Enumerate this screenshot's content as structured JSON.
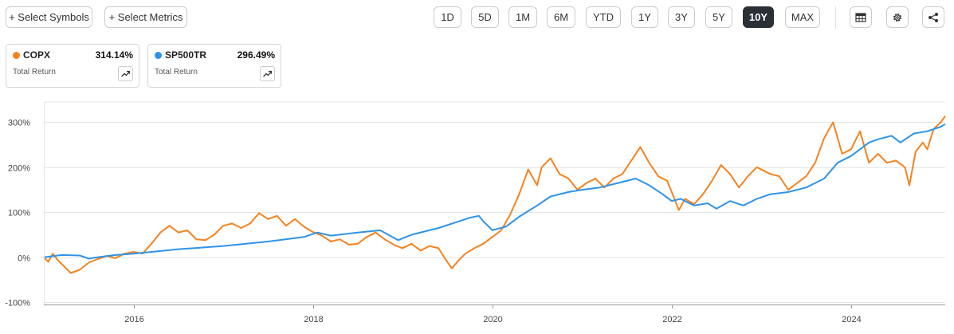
{
  "toolbar": {
    "select_symbols": "+ Select Symbols",
    "select_metrics": "+ Select Metrics",
    "ranges": [
      "1D",
      "5D",
      "1M",
      "6M",
      "YTD",
      "1Y",
      "3Y",
      "5Y",
      "10Y",
      "MAX"
    ],
    "active_range": "10Y",
    "icons": [
      "table-icon",
      "gear-icon",
      "share-icon"
    ]
  },
  "legend": [
    {
      "symbol": "COPX",
      "value": "314.14%",
      "subtitle": "Total Return",
      "color": "#f5821f"
    },
    {
      "symbol": "SP500TR",
      "value": "296.49%",
      "subtitle": "Total Return",
      "color": "#2e93e8"
    }
  ],
  "chart_data": {
    "type": "line",
    "xlabel": "",
    "ylabel": "",
    "x_tick_labels": [
      "2016",
      "2018",
      "2020",
      "2022",
      "2024"
    ],
    "y_tick_labels": [
      "300%",
      "200%",
      "100%",
      "0%",
      "-100%"
    ],
    "xlim": [
      2015.0,
      2025.05
    ],
    "ylim": [
      -105,
      345
    ],
    "grid": "horizontal",
    "series": [
      {
        "name": "COPX",
        "color": "#f5821f",
        "points": [
          [
            2015.0,
            0
          ],
          [
            2015.05,
            -10
          ],
          [
            2015.1,
            8
          ],
          [
            2015.15,
            -5
          ],
          [
            2015.2,
            -15
          ],
          [
            2015.3,
            -35
          ],
          [
            2015.4,
            -28
          ],
          [
            2015.5,
            -12
          ],
          [
            2015.6,
            -4
          ],
          [
            2015.7,
            3
          ],
          [
            2015.8,
            -2
          ],
          [
            2015.9,
            8
          ],
          [
            2016.0,
            12
          ],
          [
            2016.1,
            8
          ],
          [
            2016.2,
            30
          ],
          [
            2016.3,
            55
          ],
          [
            2016.4,
            70
          ],
          [
            2016.5,
            55
          ],
          [
            2016.6,
            60
          ],
          [
            2016.7,
            40
          ],
          [
            2016.8,
            38
          ],
          [
            2016.9,
            50
          ],
          [
            2017.0,
            70
          ],
          [
            2017.1,
            75
          ],
          [
            2017.2,
            65
          ],
          [
            2017.3,
            75
          ],
          [
            2017.4,
            98
          ],
          [
            2017.5,
            85
          ],
          [
            2017.6,
            92
          ],
          [
            2017.7,
            70
          ],
          [
            2017.8,
            85
          ],
          [
            2017.9,
            68
          ],
          [
            2018.0,
            56
          ],
          [
            2018.1,
            48
          ],
          [
            2018.2,
            35
          ],
          [
            2018.3,
            40
          ],
          [
            2018.4,
            28
          ],
          [
            2018.5,
            30
          ],
          [
            2018.6,
            45
          ],
          [
            2018.7,
            55
          ],
          [
            2018.8,
            40
          ],
          [
            2018.9,
            28
          ],
          [
            2019.0,
            20
          ],
          [
            2019.1,
            30
          ],
          [
            2019.2,
            15
          ],
          [
            2019.3,
            25
          ],
          [
            2019.4,
            20
          ],
          [
            2019.48,
            -5
          ],
          [
            2019.55,
            -25
          ],
          [
            2019.62,
            -8
          ],
          [
            2019.7,
            8
          ],
          [
            2019.8,
            20
          ],
          [
            2019.9,
            30
          ],
          [
            2020.0,
            45
          ],
          [
            2020.1,
            60
          ],
          [
            2020.2,
            95
          ],
          [
            2020.3,
            140
          ],
          [
            2020.4,
            195
          ],
          [
            2020.5,
            160
          ],
          [
            2020.55,
            200
          ],
          [
            2020.65,
            220
          ],
          [
            2020.75,
            185
          ],
          [
            2020.85,
            175
          ],
          [
            2020.95,
            150
          ],
          [
            2021.05,
            165
          ],
          [
            2021.15,
            175
          ],
          [
            2021.25,
            155
          ],
          [
            2021.35,
            175
          ],
          [
            2021.45,
            185
          ],
          [
            2021.55,
            215
          ],
          [
            2021.65,
            245
          ],
          [
            2021.75,
            210
          ],
          [
            2021.85,
            180
          ],
          [
            2021.95,
            170
          ],
          [
            2022.0,
            145
          ],
          [
            2022.08,
            105
          ],
          [
            2022.15,
            130
          ],
          [
            2022.25,
            118
          ],
          [
            2022.35,
            140
          ],
          [
            2022.45,
            170
          ],
          [
            2022.55,
            205
          ],
          [
            2022.65,
            185
          ],
          [
            2022.75,
            155
          ],
          [
            2022.85,
            180
          ],
          [
            2022.95,
            200
          ],
          [
            2023.1,
            185
          ],
          [
            2023.2,
            180
          ],
          [
            2023.3,
            150
          ],
          [
            2023.4,
            165
          ],
          [
            2023.5,
            180
          ],
          [
            2023.6,
            210
          ],
          [
            2023.7,
            265
          ],
          [
            2023.8,
            300
          ],
          [
            2023.9,
            230
          ],
          [
            2024.0,
            240
          ],
          [
            2024.1,
            280
          ],
          [
            2024.2,
            210
          ],
          [
            2024.3,
            230
          ],
          [
            2024.4,
            210
          ],
          [
            2024.5,
            215
          ],
          [
            2024.6,
            200
          ],
          [
            2024.65,
            160
          ],
          [
            2024.72,
            235
          ],
          [
            2024.8,
            255
          ],
          [
            2024.85,
            240
          ],
          [
            2024.92,
            285
          ],
          [
            2025.0,
            300
          ],
          [
            2025.05,
            314
          ]
        ]
      },
      {
        "name": "SP500TR",
        "color": "#2e93e8",
        "points": [
          [
            2015.0,
            0
          ],
          [
            2015.2,
            5
          ],
          [
            2015.4,
            4
          ],
          [
            2015.5,
            -3
          ],
          [
            2015.6,
            0
          ],
          [
            2015.8,
            5
          ],
          [
            2016.0,
            8
          ],
          [
            2016.2,
            12
          ],
          [
            2016.5,
            18
          ],
          [
            2016.8,
            22
          ],
          [
            2017.0,
            25
          ],
          [
            2017.5,
            35
          ],
          [
            2017.9,
            45
          ],
          [
            2018.05,
            55
          ],
          [
            2018.2,
            48
          ],
          [
            2018.5,
            55
          ],
          [
            2018.75,
            60
          ],
          [
            2018.95,
            38
          ],
          [
            2019.1,
            50
          ],
          [
            2019.4,
            65
          ],
          [
            2019.6,
            78
          ],
          [
            2019.75,
            88
          ],
          [
            2019.85,
            92
          ],
          [
            2019.9,
            80
          ],
          [
            2019.95,
            70
          ],
          [
            2020.0,
            60
          ],
          [
            2020.15,
            68
          ],
          [
            2020.3,
            90
          ],
          [
            2020.5,
            115
          ],
          [
            2020.65,
            135
          ],
          [
            2020.85,
            145
          ],
          [
            2021.0,
            150
          ],
          [
            2021.2,
            155
          ],
          [
            2021.4,
            165
          ],
          [
            2021.6,
            175
          ],
          [
            2021.75,
            160
          ],
          [
            2021.9,
            140
          ],
          [
            2022.0,
            125
          ],
          [
            2022.1,
            130
          ],
          [
            2022.25,
            115
          ],
          [
            2022.4,
            120
          ],
          [
            2022.5,
            108
          ],
          [
            2022.65,
            125
          ],
          [
            2022.8,
            115
          ],
          [
            2022.95,
            130
          ],
          [
            2023.1,
            140
          ],
          [
            2023.3,
            145
          ],
          [
            2023.5,
            155
          ],
          [
            2023.7,
            175
          ],
          [
            2023.85,
            210
          ],
          [
            2024.0,
            225
          ],
          [
            2024.1,
            240
          ],
          [
            2024.2,
            255
          ],
          [
            2024.3,
            262
          ],
          [
            2024.45,
            270
          ],
          [
            2024.55,
            255
          ],
          [
            2024.7,
            275
          ],
          [
            2024.85,
            280
          ],
          [
            2025.0,
            290
          ],
          [
            2025.05,
            296
          ]
        ]
      }
    ]
  }
}
